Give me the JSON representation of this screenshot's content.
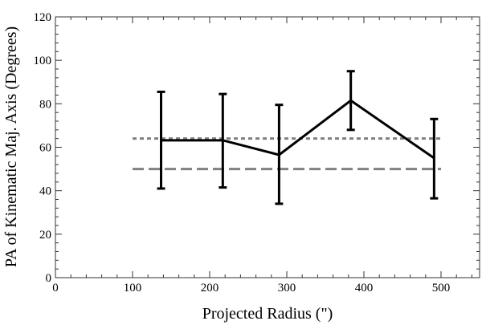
{
  "chart_data": {
    "type": "line",
    "title": "",
    "xlabel": "Projected Radius (\")",
    "ylabel": "PA of Kinematic Maj. Axis (Degrees)",
    "xlim": [
      0,
      550
    ],
    "ylim": [
      0,
      120
    ],
    "x_ticks": [
      0,
      100,
      200,
      300,
      400,
      500
    ],
    "x_tick_labels": [
      "0",
      "100",
      "200",
      "300",
      "400",
      "500"
    ],
    "y_ticks": [
      0,
      20,
      40,
      60,
      80,
      100,
      120
    ],
    "y_tick_labels": [
      "0",
      "20",
      "40",
      "60",
      "80",
      "100",
      "120"
    ],
    "grid": false,
    "series": [
      {
        "style": "solid",
        "color": "#000000",
        "points": [
          {
            "x": 137,
            "y": 63.2,
            "err_low": 41,
            "err_high": 85.5
          },
          {
            "x": 217,
            "y": 63.2,
            "err_low": 41.5,
            "err_high": 84.5
          },
          {
            "x": 290,
            "y": 56.5,
            "err_low": 34,
            "err_high": 79.5
          },
          {
            "x": 383,
            "y": 81.5,
            "err_low": 68,
            "err_high": 95
          },
          {
            "x": 491,
            "y": 55,
            "err_low": 36.5,
            "err_high": 73
          }
        ]
      }
    ],
    "reference_lines": [
      {
        "style": "dotted",
        "color": "#808080",
        "y": 64,
        "x_range": [
          100,
          500
        ]
      },
      {
        "style": "dashed",
        "color": "#808080",
        "y": 50,
        "x_range": [
          100,
          500
        ]
      }
    ]
  }
}
